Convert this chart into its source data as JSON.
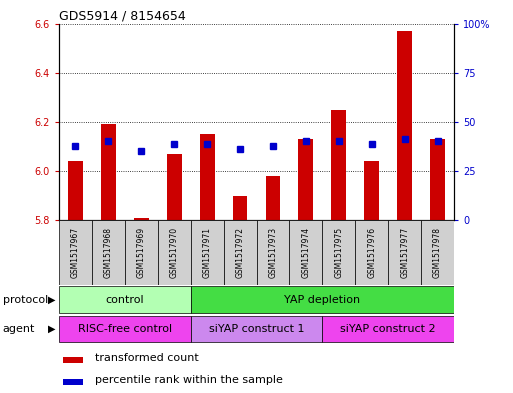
{
  "title": "GDS5914 / 8154654",
  "samples": [
    "GSM1517967",
    "GSM1517968",
    "GSM1517969",
    "GSM1517970",
    "GSM1517971",
    "GSM1517972",
    "GSM1517973",
    "GSM1517974",
    "GSM1517975",
    "GSM1517976",
    "GSM1517977",
    "GSM1517978"
  ],
  "bar_values": [
    6.04,
    6.19,
    5.81,
    6.07,
    6.15,
    5.9,
    5.98,
    6.13,
    6.25,
    6.04,
    6.57,
    6.13
  ],
  "blue_values": [
    6.1,
    6.12,
    6.08,
    6.11,
    6.11,
    6.09,
    6.1,
    6.12,
    6.12,
    6.11,
    6.13,
    6.12
  ],
  "bar_bottom": 5.8,
  "ylim": [
    5.8,
    6.6
  ],
  "y_ticks_left": [
    5.8,
    6.0,
    6.2,
    6.4,
    6.6
  ],
  "y_ticks_right": [
    0,
    25,
    50,
    75,
    100
  ],
  "protocol_labels": [
    "control",
    "YAP depletion"
  ],
  "protocol_colors": [
    "#b3ffb3",
    "#44dd44"
  ],
  "agent_labels": [
    "RISC-free control",
    "siYAP construct 1",
    "siYAP construct 2"
  ],
  "agent_colors": [
    "#ee44ee",
    "#cc88ee",
    "#ee44ee"
  ],
  "bar_color": "#cc0000",
  "blue_color": "#0000cc",
  "plot_bg": "#ffffff",
  "grid_color": "#000000",
  "left_axis_color": "#cc0000",
  "right_axis_color": "#0000cc",
  "sample_box_color": "#d0d0d0",
  "title_fontsize": 9,
  "tick_fontsize": 7,
  "label_fontsize": 8,
  "bar_width": 0.45
}
